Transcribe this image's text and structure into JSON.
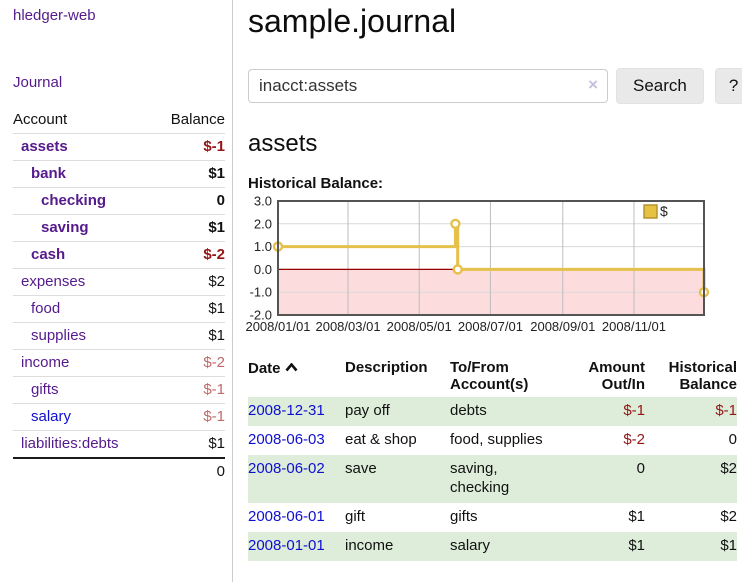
{
  "app": {
    "title": "hledger-web",
    "nav_journal": "Journal"
  },
  "sidebar": {
    "header": {
      "account": "Account",
      "balance": "Balance"
    },
    "accounts": [
      {
        "name": "assets",
        "depth": 1,
        "balance": "$-1",
        "bold": true,
        "neg": "strong",
        "blue": false
      },
      {
        "name": "bank",
        "depth": 2,
        "balance": "$1",
        "bold": true,
        "neg": "none",
        "blue": false
      },
      {
        "name": "checking",
        "depth": 3,
        "balance": "0",
        "bold": true,
        "neg": "none",
        "blue": false
      },
      {
        "name": "saving",
        "depth": 3,
        "balance": "$1",
        "bold": true,
        "neg": "none",
        "blue": false
      },
      {
        "name": "cash",
        "depth": 2,
        "balance": "$-2",
        "bold": true,
        "neg": "strong",
        "blue": false
      },
      {
        "name": "expenses",
        "depth": 1,
        "balance": "$2",
        "bold": false,
        "neg": "none",
        "blue": false
      },
      {
        "name": "food",
        "depth": 2,
        "balance": "$1",
        "bold": false,
        "neg": "none",
        "blue": false
      },
      {
        "name": "supplies",
        "depth": 2,
        "balance": "$1",
        "bold": false,
        "neg": "none",
        "blue": false
      },
      {
        "name": "income",
        "depth": 1,
        "balance": "$-2",
        "bold": false,
        "neg": "soft",
        "blue": false
      },
      {
        "name": "gifts",
        "depth": 2,
        "balance": "$-1",
        "bold": false,
        "neg": "soft",
        "blue": false
      },
      {
        "name": "salary",
        "depth": 2,
        "balance": "$-1",
        "bold": false,
        "neg": "soft",
        "blue": true
      },
      {
        "name": "liabilities:debts",
        "depth": 1,
        "balance": "$1",
        "bold": false,
        "neg": "none",
        "blue": false
      }
    ],
    "total": "0"
  },
  "main": {
    "title": "sample.journal",
    "search": {
      "value": "inacct:assets",
      "clear_icon": "×",
      "button": "Search",
      "help": "?"
    },
    "account_heading": "assets",
    "chart_label": "Historical Balance:"
  },
  "chart_data": {
    "type": "line",
    "title": "Historical Balance",
    "step": true,
    "legend": "$",
    "legend_position": "top-right",
    "series": [
      {
        "name": "$",
        "points": [
          [
            "2008-01-01",
            1
          ],
          [
            "2008-06-01",
            2
          ],
          [
            "2008-06-02",
            2
          ],
          [
            "2008-06-03",
            0
          ],
          [
            "2008-12-31",
            -1
          ]
        ]
      }
    ],
    "x_range": [
      "2008-01-01",
      "2008-12-31"
    ],
    "x_ticks": [
      "2008/01/01",
      "2008/03/01",
      "2008/05/01",
      "2008/07/01",
      "2008/09/01",
      "2008/11/01"
    ],
    "y_ticks": [
      3.0,
      2.0,
      1.0,
      0.0,
      -1.0,
      -2.0
    ],
    "ylim": [
      -2,
      3
    ],
    "grid": true,
    "colors": {
      "line": "#e5c04a",
      "marker_fill": "#ffffff",
      "negative_region": "#fcdcdc",
      "zero_line": "#990000",
      "border": "#545454",
      "vgrid": "#bdbdbd",
      "hgrid": "#d9d9d9",
      "legend_fill": "#e6c243",
      "legend_border": "#b08f2a",
      "tick_text": "#222222"
    }
  },
  "table": {
    "headers": {
      "date": "Date",
      "description": "Description",
      "accounts": "To/From Account(s)",
      "amount": "Amount Out/In",
      "balance": "Historical Balance"
    },
    "rows": [
      {
        "date": "2008-12-31",
        "description": "pay off",
        "accounts": "debts",
        "amount": "$-1",
        "amount_neg": true,
        "balance": "$-1",
        "balance_neg": true
      },
      {
        "date": "2008-06-03",
        "description": "eat & shop",
        "accounts": "food, supplies",
        "amount": "$-2",
        "amount_neg": true,
        "balance": "0",
        "balance_neg": false
      },
      {
        "date": "2008-06-02",
        "description": "save",
        "accounts": "saving, checking",
        "amount": "0",
        "amount_neg": false,
        "balance": "$2",
        "balance_neg": false
      },
      {
        "date": "2008-06-01",
        "description": "gift",
        "accounts": "gifts",
        "amount": "$1",
        "amount_neg": false,
        "balance": "$2",
        "balance_neg": false
      },
      {
        "date": "2008-01-01",
        "description": "income",
        "accounts": "salary",
        "amount": "$1",
        "amount_neg": false,
        "balance": "$1",
        "balance_neg": false
      }
    ]
  },
  "colors": {
    "link_purple": "#551a8b",
    "link_blue": "#0f0fd0",
    "negative_strong": "#951515",
    "negative_soft": "#c06a6a",
    "row_stripe_green": "#ddedda",
    "chart_gold": "#e5c04a"
  }
}
